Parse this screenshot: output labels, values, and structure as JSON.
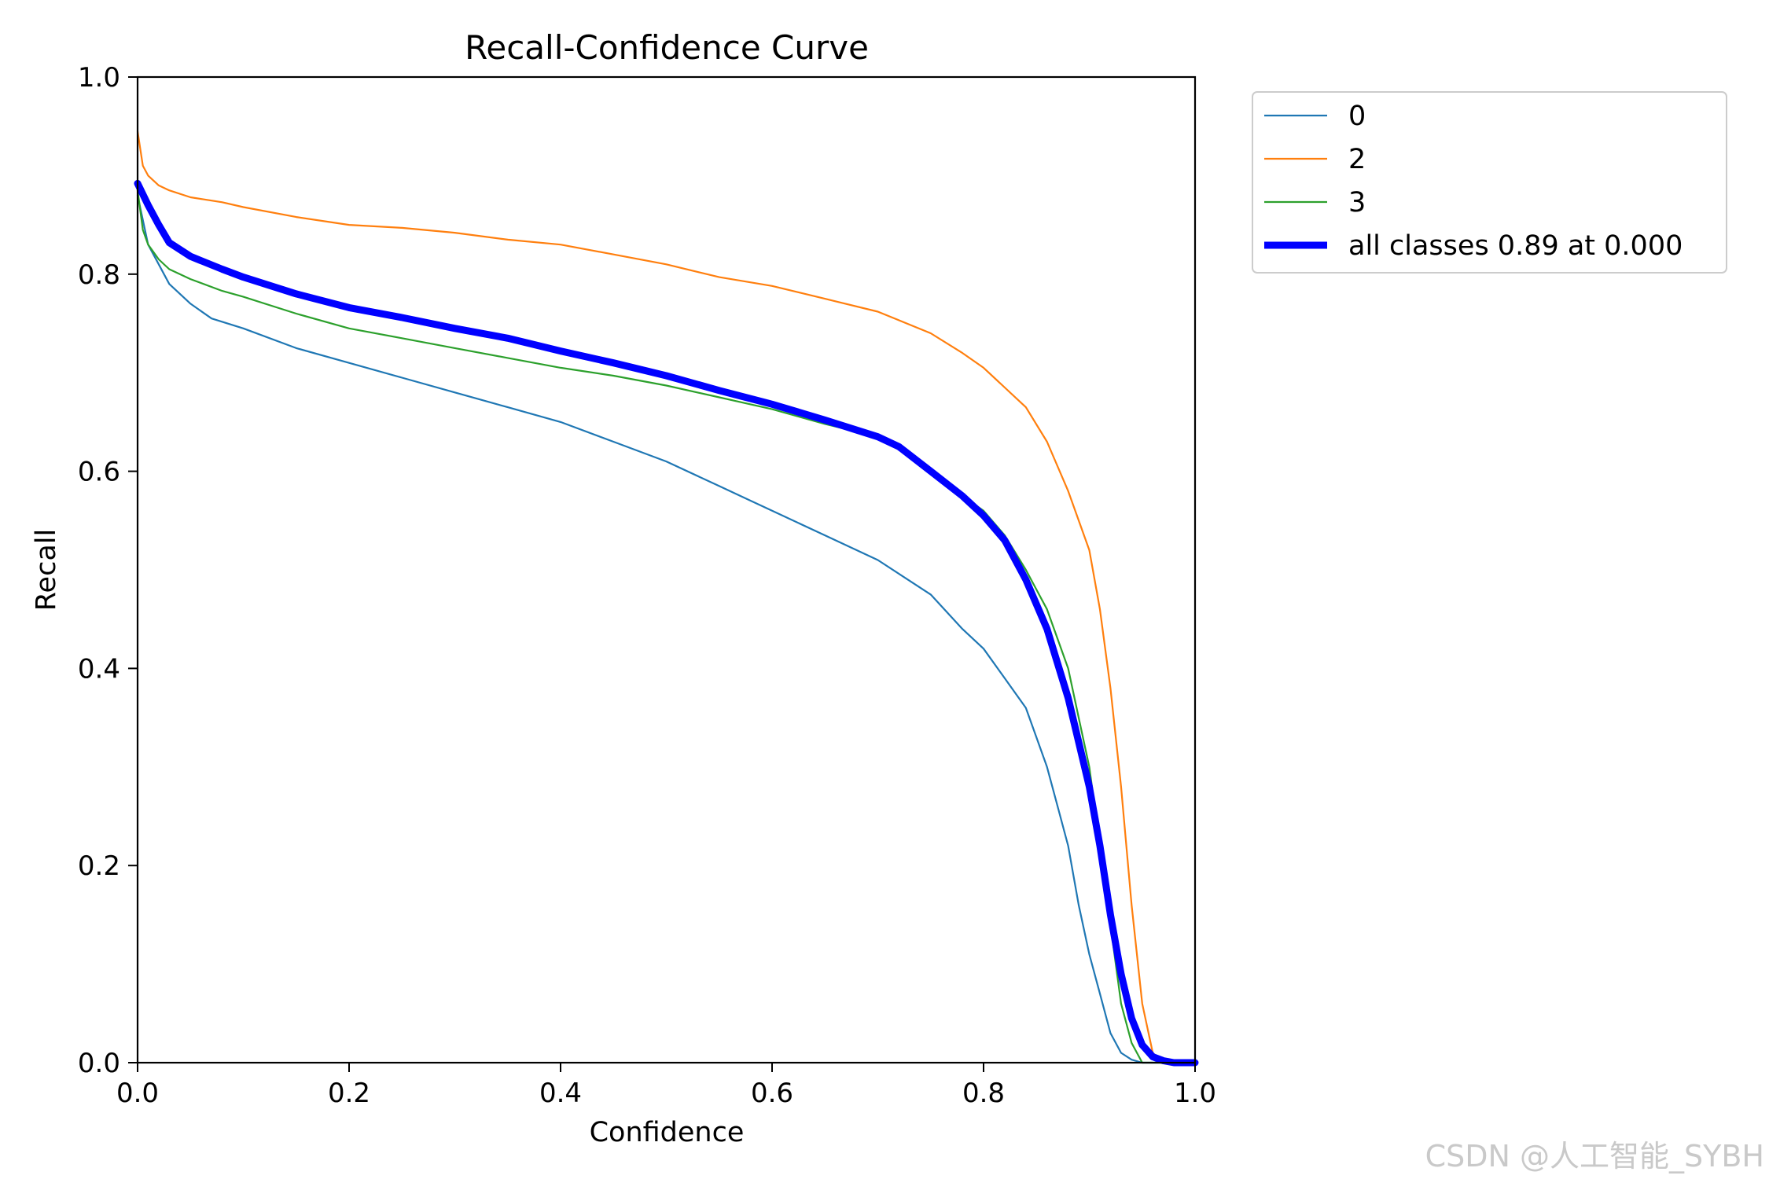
{
  "chart_data": {
    "type": "line",
    "title": "Recall-Confidence Curve",
    "xlabel": "Confidence",
    "ylabel": "Recall",
    "xlim": [
      0.0,
      1.0
    ],
    "ylim": [
      0.0,
      1.0
    ],
    "x_ticks": [
      "0.0",
      "0.2",
      "0.4",
      "0.6",
      "0.8",
      "1.0"
    ],
    "y_ticks": [
      "0.0",
      "0.2",
      "0.4",
      "0.6",
      "0.8",
      "1.0"
    ],
    "grid": false,
    "legend_position": "outside-top-right",
    "series": [
      {
        "name": "0",
        "color": "#1f77b4",
        "line_width": "thin",
        "x": [
          0.0,
          0.01,
          0.02,
          0.03,
          0.05,
          0.07,
          0.1,
          0.15,
          0.2,
          0.25,
          0.3,
          0.35,
          0.4,
          0.45,
          0.5,
          0.55,
          0.6,
          0.65,
          0.7,
          0.75,
          0.78,
          0.8,
          0.82,
          0.84,
          0.85,
          0.86,
          0.87,
          0.88,
          0.89,
          0.9,
          0.91,
          0.92,
          0.93,
          0.94,
          0.95,
          0.96,
          1.0
        ],
        "y": [
          0.88,
          0.83,
          0.81,
          0.79,
          0.77,
          0.755,
          0.745,
          0.725,
          0.71,
          0.695,
          0.68,
          0.665,
          0.65,
          0.63,
          0.61,
          0.585,
          0.56,
          0.535,
          0.51,
          0.475,
          0.44,
          0.42,
          0.39,
          0.36,
          0.33,
          0.3,
          0.26,
          0.22,
          0.16,
          0.11,
          0.07,
          0.03,
          0.01,
          0.003,
          0.0,
          0.0,
          0.0
        ]
      },
      {
        "name": "2",
        "color": "#ff7f0e",
        "line_width": "thin",
        "x": [
          0.0,
          0.005,
          0.01,
          0.02,
          0.03,
          0.05,
          0.08,
          0.1,
          0.15,
          0.2,
          0.25,
          0.3,
          0.35,
          0.4,
          0.45,
          0.5,
          0.55,
          0.6,
          0.65,
          0.7,
          0.75,
          0.78,
          0.8,
          0.82,
          0.84,
          0.86,
          0.88,
          0.9,
          0.91,
          0.92,
          0.93,
          0.94,
          0.95,
          0.96,
          0.97,
          0.98,
          1.0
        ],
        "y": [
          0.945,
          0.91,
          0.9,
          0.89,
          0.885,
          0.878,
          0.873,
          0.868,
          0.858,
          0.85,
          0.847,
          0.842,
          0.835,
          0.83,
          0.82,
          0.81,
          0.797,
          0.788,
          0.775,
          0.762,
          0.74,
          0.72,
          0.705,
          0.685,
          0.665,
          0.63,
          0.58,
          0.52,
          0.46,
          0.38,
          0.28,
          0.16,
          0.06,
          0.01,
          0.0,
          0.0,
          0.0
        ]
      },
      {
        "name": "3",
        "color": "#2ca02c",
        "line_width": "thin",
        "x": [
          0.0,
          0.005,
          0.01,
          0.02,
          0.03,
          0.05,
          0.08,
          0.1,
          0.15,
          0.2,
          0.25,
          0.3,
          0.35,
          0.4,
          0.45,
          0.5,
          0.55,
          0.6,
          0.65,
          0.7,
          0.72,
          0.75,
          0.78,
          0.8,
          0.82,
          0.84,
          0.86,
          0.88,
          0.89,
          0.9,
          0.91,
          0.92,
          0.93,
          0.94,
          0.95,
          0.96,
          1.0
        ],
        "y": [
          0.885,
          0.845,
          0.83,
          0.815,
          0.805,
          0.795,
          0.783,
          0.777,
          0.76,
          0.745,
          0.735,
          0.725,
          0.715,
          0.705,
          0.697,
          0.687,
          0.675,
          0.663,
          0.648,
          0.635,
          0.625,
          0.6,
          0.575,
          0.56,
          0.535,
          0.5,
          0.46,
          0.4,
          0.35,
          0.3,
          0.22,
          0.14,
          0.06,
          0.02,
          0.0,
          0.0,
          0.0
        ]
      },
      {
        "name": "all classes 0.89 at 0.000",
        "color": "#0000ff",
        "line_width": "thick",
        "x": [
          0.0,
          0.01,
          0.02,
          0.03,
          0.05,
          0.08,
          0.1,
          0.15,
          0.2,
          0.25,
          0.3,
          0.35,
          0.4,
          0.45,
          0.5,
          0.55,
          0.6,
          0.65,
          0.7,
          0.72,
          0.75,
          0.78,
          0.8,
          0.82,
          0.84,
          0.86,
          0.88,
          0.9,
          0.91,
          0.92,
          0.93,
          0.94,
          0.95,
          0.96,
          0.97,
          0.98,
          1.0
        ],
        "y": [
          0.892,
          0.87,
          0.85,
          0.832,
          0.818,
          0.805,
          0.797,
          0.78,
          0.766,
          0.756,
          0.745,
          0.735,
          0.722,
          0.71,
          0.697,
          0.682,
          0.668,
          0.652,
          0.635,
          0.625,
          0.6,
          0.575,
          0.555,
          0.53,
          0.49,
          0.44,
          0.37,
          0.28,
          0.22,
          0.15,
          0.09,
          0.045,
          0.018,
          0.006,
          0.002,
          0.0,
          0.0
        ]
      }
    ]
  },
  "watermark": "CSDN @人工智能_SYBH"
}
